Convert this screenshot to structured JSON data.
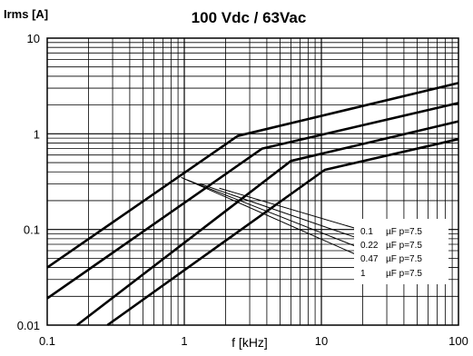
{
  "chart_data": {
    "type": "line",
    "title": "100 Vdc / 63Vac",
    "ylabel": "Irms [A]",
    "xlabel": "f [kHz]",
    "x_scale": "log",
    "y_scale": "log",
    "xlim": [
      0.1,
      100
    ],
    "ylim": [
      0.01,
      10
    ],
    "x_ticks": [
      "0.1",
      "1",
      "10",
      "100"
    ],
    "y_ticks": [
      "0.01",
      "0.1",
      "1",
      "10"
    ],
    "grid": true,
    "series": [
      {
        "name": "0.1 µF p=7.5",
        "points": [
          [
            0.1,
            0.04
          ],
          [
            2.45,
            0.95
          ],
          [
            100,
            3.4
          ]
        ]
      },
      {
        "name": "0.22 µF p=7.5",
        "points": [
          [
            0.1,
            0.019
          ],
          [
            3.7,
            0.7
          ],
          [
            100,
            2.1
          ]
        ]
      },
      {
        "name": "0.47 µF p=7.5",
        "points": [
          [
            0.165,
            0.01
          ],
          [
            6.0,
            0.52
          ],
          [
            100,
            1.35
          ]
        ]
      },
      {
        "name": "1 µF p=7.5",
        "points": [
          [
            0.275,
            0.01
          ],
          [
            10.6,
            0.42
          ],
          [
            100,
            0.88
          ]
        ]
      }
    ],
    "legend": [
      {
        "value": "0.1",
        "unit": "µF p=7.5"
      },
      {
        "value": "0.22",
        "unit": "µF p=7.5"
      },
      {
        "value": "0.47",
        "unit": "µF p=7.5"
      },
      {
        "value": "1",
        "unit": "µF p=7.5"
      }
    ],
    "legend_leaders": [
      {
        "from": [
          1.8,
          0.27
        ],
        "to": [
          44,
          0.07
        ]
      },
      {
        "from": [
          1.3,
          0.3
        ],
        "to": [
          44,
          0.0528
        ]
      },
      {
        "from": [
          1.05,
          0.33
        ],
        "to": [
          44,
          0.04
        ]
      },
      {
        "from": [
          0.95,
          0.35
        ],
        "to": [
          44,
          0.031
        ]
      }
    ]
  }
}
